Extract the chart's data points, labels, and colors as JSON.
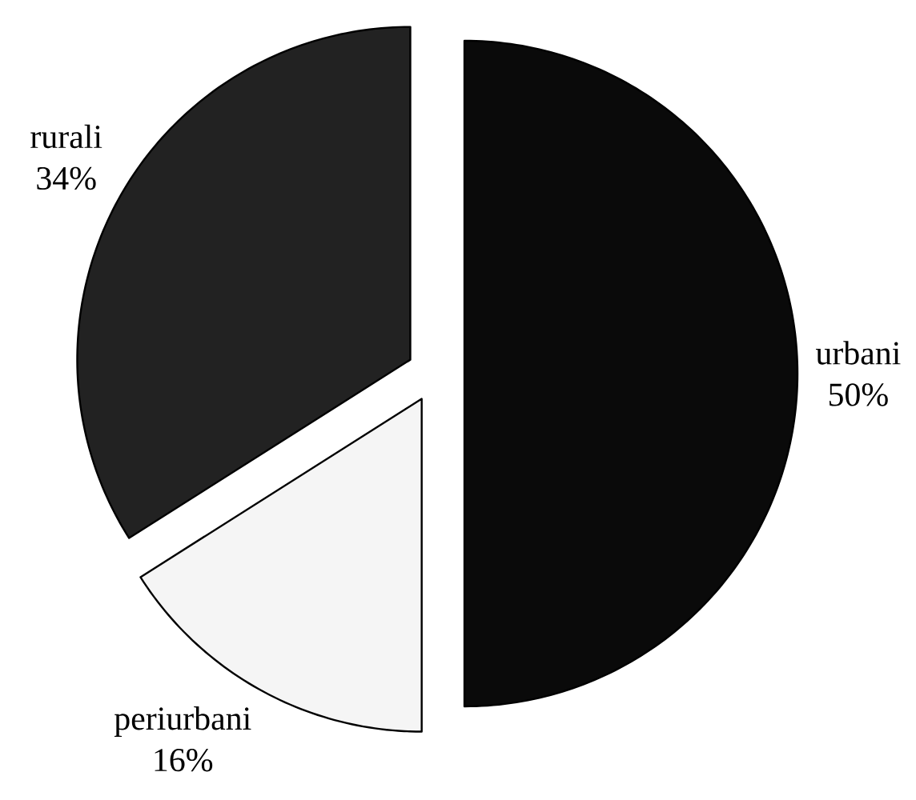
{
  "chart_data": {
    "type": "pie",
    "categories": [
      "urbani",
      "periurbani",
      "rurali"
    ],
    "values": [
      50,
      16,
      34
    ],
    "value_labels": [
      "50%",
      "16%",
      "34%"
    ],
    "colors": [
      "#0a0a0a",
      "#f5f5f5",
      "#222222"
    ]
  }
}
